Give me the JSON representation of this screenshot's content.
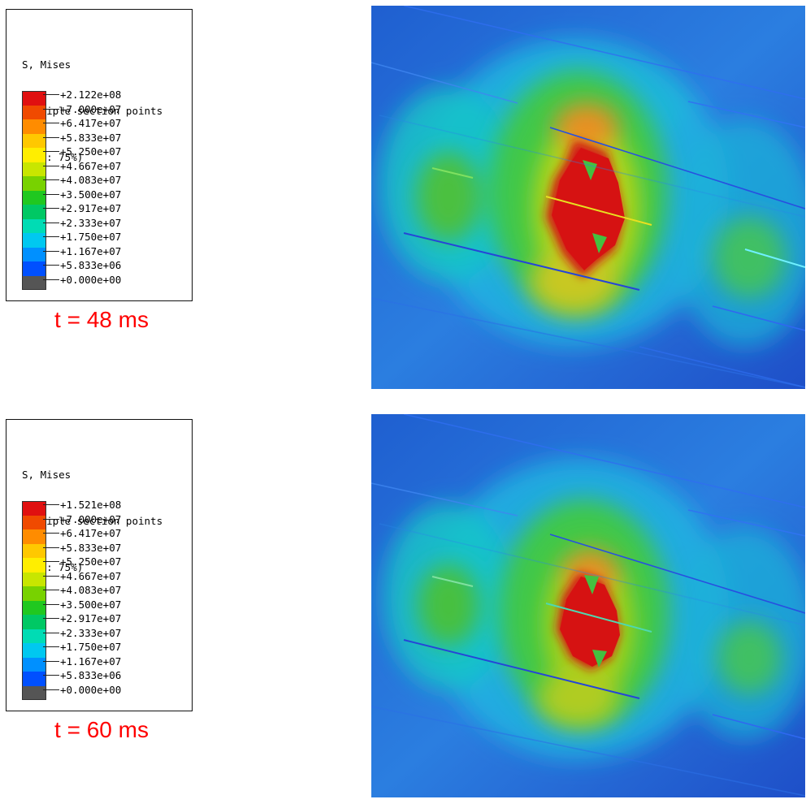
{
  "panels": [
    {
      "legend": {
        "title": "S, Mises",
        "subtitle": "Multiple section points",
        "averaging": "(Avg: 75%)",
        "ticks": [
          "+2.122e+08",
          "+7.000e+07",
          "+6.417e+07",
          "+5.833e+07",
          "+5.250e+07",
          "+4.667e+07",
          "+4.083e+07",
          "+3.500e+07",
          "+2.917e+07",
          "+2.333e+07",
          "+1.750e+07",
          "+1.167e+07",
          "+5.833e+06",
          "+0.000e+00"
        ],
        "colors": [
          "#e01010",
          "#f04a00",
          "#ff8c00",
          "#ffc800",
          "#ffee00",
          "#c8e600",
          "#78d200",
          "#20c820",
          "#00c864",
          "#00dcb4",
          "#00c8f0",
          "#0090ff",
          "#0050ff",
          "#555555"
        ]
      },
      "time_label": "t = 48 ms"
    },
    {
      "legend": {
        "title": "S, Mises",
        "subtitle": "Multiple section points",
        "averaging": "(Avg: 75%)",
        "ticks": [
          "+1.521e+08",
          "+7.000e+07",
          "+6.417e+07",
          "+5.833e+07",
          "+5.250e+07",
          "+4.667e+07",
          "+4.083e+07",
          "+3.500e+07",
          "+2.917e+07",
          "+2.333e+07",
          "+1.750e+07",
          "+1.167e+07",
          "+5.833e+06",
          "+0.000e+00"
        ],
        "colors": [
          "#e01010",
          "#f04a00",
          "#ff8c00",
          "#ffc800",
          "#ffee00",
          "#c8e600",
          "#78d200",
          "#20c820",
          "#00c864",
          "#00dcb4",
          "#00c8f0",
          "#0090ff",
          "#0050ff",
          "#555555"
        ]
      },
      "time_label": "t = 60 ms"
    }
  ]
}
